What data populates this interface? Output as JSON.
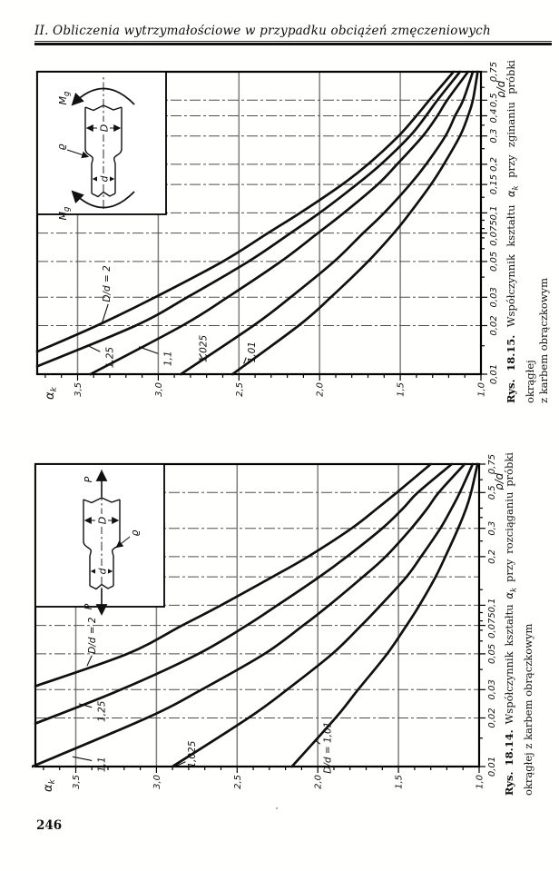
{
  "header": {
    "text": "II. Obliczenia wytrzymałościowe w przypadku obciążeń zmęczeniowych"
  },
  "page_number": "246",
  "figures": [
    {
      "name": "rys-18-15",
      "caption": {
        "prefix": "Rys. 18.15.",
        "mid": " Współczynnik kształtu ",
        "alpha": "α",
        "sub": "k",
        "rest": " przy zginaniu próbki okrągłej",
        "line2": "z karbem obrączkowym"
      }
    },
    {
      "name": "rys-18-14",
      "caption": {
        "prefix": "Rys. 18.14.",
        "mid": " Współczynnik kształtu ",
        "alpha": "α",
        "sub": "k",
        "rest": " przy rozciąganiu próbki",
        "line2": "okrągłej z karbem obrączkowym"
      }
    }
  ],
  "chart_data": [
    {
      "type": "line",
      "figure": "Rys. 18.15 — zginanie (bending)",
      "x_scale": "log",
      "xlim": [
        0.01,
        0.75
      ],
      "ylim": [
        1.0,
        3.75
      ],
      "xlabel": "ϱ/d",
      "ylabel_main": "α",
      "ylabel_sub": "k",
      "x_tick_values": [
        0.01,
        0.02,
        0.03,
        0.05,
        0.075,
        0.1,
        0.15,
        0.2,
        0.3,
        0.4,
        0.5,
        0.75
      ],
      "x_tick_labels": [
        "0,01",
        "0,02",
        "0,03",
        "0,05",
        "0,075",
        "0,1",
        "0,15",
        "0,2",
        "0,3",
        "0,4",
        "0,5",
        "0,75"
      ],
      "x_gridlines": [
        0.02,
        0.03,
        0.05,
        0.075,
        0.1,
        0.15,
        0.2,
        0.3,
        0.4,
        0.5
      ],
      "x_minor_ticks": [
        0.015,
        0.04,
        0.06,
        0.07,
        0.08,
        0.09,
        0.125,
        0.25,
        0.35,
        0.6
      ],
      "y_tick_values": [
        1.0,
        1.5,
        2.0,
        2.5,
        3.0,
        3.5
      ],
      "y_tick_labels": [
        "1,0",
        "1,5",
        "2,0",
        "2,5",
        "3,0",
        "3,5"
      ],
      "y_gridlines": [
        1.5,
        2.0,
        2.5,
        3.0,
        3.5
      ],
      "grid": true,
      "legend": "labels on curves",
      "series": [
        {
          "name": "D/d = 2",
          "label": "D/d = 2",
          "label_pos": [
            0.028,
            3.3
          ],
          "label_anchor": "start",
          "leader": [
            0.0205,
            3.35,
            0.0272,
            3.31
          ],
          "points": [
            [
              0.0138,
              3.75
            ],
            [
              0.02,
              3.38
            ],
            [
              0.03,
              3.02
            ],
            [
              0.05,
              2.6
            ],
            [
              0.075,
              2.32
            ],
            [
              0.1,
              2.12
            ],
            [
              0.15,
              1.86
            ],
            [
              0.2,
              1.7
            ],
            [
              0.3,
              1.51
            ],
            [
              0.4,
              1.4
            ],
            [
              0.5,
              1.32
            ],
            [
              0.75,
              1.17
            ]
          ]
        },
        {
          "name": "D/d = 1,25",
          "label": "1,25",
          "label_pos": [
            0.0127,
            3.28
          ],
          "label_anchor": "middle",
          "leader": [
            0.0138,
            3.36,
            0.0151,
            3.44
          ],
          "points": [
            [
              0.0112,
              3.75
            ],
            [
              0.02,
              3.14
            ],
            [
              0.03,
              2.82
            ],
            [
              0.05,
              2.44
            ],
            [
              0.075,
              2.18
            ],
            [
              0.1,
              2.0
            ],
            [
              0.15,
              1.77
            ],
            [
              0.2,
              1.62
            ],
            [
              0.3,
              1.44
            ],
            [
              0.4,
              1.34
            ],
            [
              0.5,
              1.27
            ],
            [
              0.75,
              1.13
            ]
          ]
        },
        {
          "name": "D/d = 1,1",
          "label": "1,1",
          "label_pos": [
            0.0125,
            2.92
          ],
          "label_anchor": "middle",
          "leader": [
            0.0134,
            3.0,
            0.0148,
            3.12
          ],
          "points": [
            [
              0.01,
              3.42
            ],
            [
              0.02,
              2.85
            ],
            [
              0.03,
              2.57
            ],
            [
              0.05,
              2.24
            ],
            [
              0.075,
              2.01
            ],
            [
              0.1,
              1.85
            ],
            [
              0.15,
              1.64
            ],
            [
              0.2,
              1.52
            ],
            [
              0.3,
              1.36
            ],
            [
              0.4,
              1.27
            ],
            [
              0.5,
              1.21
            ],
            [
              0.75,
              1.08
            ]
          ]
        },
        {
          "name": "D/d = 1,025",
          "label": "1,025",
          "label_pos": [
            0.0144,
            2.7
          ],
          "label_anchor": "middle",
          "leader": [
            0.0134,
            2.745,
            0.0122,
            2.72
          ],
          "points": [
            [
              0.01,
              2.86
            ],
            [
              0.02,
              2.41
            ],
            [
              0.03,
              2.18
            ],
            [
              0.05,
              1.91
            ],
            [
              0.075,
              1.73
            ],
            [
              0.1,
              1.6
            ],
            [
              0.15,
              1.44
            ],
            [
              0.2,
              1.34
            ],
            [
              0.3,
              1.22
            ],
            [
              0.4,
              1.16
            ],
            [
              0.5,
              1.11
            ],
            [
              0.75,
              1.05
            ]
          ]
        },
        {
          "name": "D/d = 1,01",
          "label": "1,01",
          "label_pos": [
            0.0137,
            2.4
          ],
          "label_anchor": "middle",
          "leader": [
            0.0127,
            2.455,
            0.0116,
            2.47
          ],
          "points": [
            [
              0.01,
              2.54
            ],
            [
              0.02,
              2.13
            ],
            [
              0.03,
              1.93
            ],
            [
              0.05,
              1.7
            ],
            [
              0.075,
              1.54
            ],
            [
              0.1,
              1.44
            ],
            [
              0.15,
              1.31
            ],
            [
              0.2,
              1.23
            ],
            [
              0.3,
              1.13
            ],
            [
              0.4,
              1.08
            ],
            [
              0.5,
              1.05
            ],
            [
              0.75,
              1.02
            ]
          ]
        }
      ],
      "inset": {
        "load_type": "bending",
        "load_label": "M",
        "load_sub": "g",
        "dim_outer": "D",
        "dim_inner": "d",
        "radius_label": "ϱ",
        "radius_side": "top"
      }
    },
    {
      "type": "line",
      "figure": "Rys. 18.14 — rozciąganie (tension)",
      "x_scale": "log",
      "xlim": [
        0.01,
        0.75
      ],
      "ylim": [
        1.0,
        3.75
      ],
      "xlabel": "ϱ/d",
      "ylabel_main": "α",
      "ylabel_sub": "k",
      "x_tick_values": [
        0.01,
        0.02,
        0.03,
        0.05,
        0.075,
        0.1,
        0.2,
        0.3,
        0.5,
        0.75
      ],
      "x_tick_labels": [
        "0,01",
        "0,02",
        "0,03",
        "0,05",
        "0,075",
        "0,1",
        "0,2",
        "0,3",
        "0,5",
        "0,75"
      ],
      "x_gridlines": [
        0.02,
        0.03,
        0.05,
        0.075,
        0.1,
        0.15,
        0.2,
        0.3,
        0.5
      ],
      "x_minor_ticks": [
        0.015,
        0.04,
        0.06,
        0.07,
        0.08,
        0.09,
        0.125,
        0.25,
        0.35,
        0.4,
        0.6
      ],
      "y_tick_values": [
        1.0,
        1.5,
        2.0,
        2.5,
        3.0,
        3.5
      ],
      "y_tick_labels": [
        "1,0",
        "1,5",
        "2,0",
        "2,5",
        "3,0",
        "3,5"
      ],
      "y_gridlines": [
        1.5,
        2.0,
        2.5,
        3.0,
        3.5
      ],
      "grid": true,
      "legend": "labels on curves",
      "series": [
        {
          "name": "D/d = 2",
          "label": "D/d = 2",
          "label_pos": [
            0.05,
            3.38
          ],
          "label_anchor": "start",
          "leader": [
            0.042,
            3.43,
            0.0488,
            3.4
          ],
          "points": [
            [
              0.0315,
              3.75
            ],
            [
              0.05,
              3.18
            ],
            [
              0.075,
              2.84
            ],
            [
              0.1,
              2.6
            ],
            [
              0.15,
              2.28
            ],
            [
              0.2,
              2.06
            ],
            [
              0.3,
              1.79
            ],
            [
              0.4,
              1.63
            ],
            [
              0.5,
              1.51
            ],
            [
              0.75,
              1.3
            ]
          ]
        },
        {
          "name": "D/d = 1,25",
          "label": "1,25",
          "label_pos": [
            0.022,
            3.32
          ],
          "label_anchor": "middle",
          "leader": [
            0.0233,
            3.4,
            0.0245,
            3.48
          ],
          "points": [
            [
              0.0185,
              3.75
            ],
            [
              0.03,
              3.22
            ],
            [
              0.05,
              2.74
            ],
            [
              0.075,
              2.44
            ],
            [
              0.1,
              2.25
            ],
            [
              0.15,
              1.99
            ],
            [
              0.2,
              1.82
            ],
            [
              0.3,
              1.6
            ],
            [
              0.4,
              1.47
            ],
            [
              0.5,
              1.38
            ],
            [
              0.75,
              1.17
            ]
          ]
        },
        {
          "name": "D/d = 1,1",
          "label": "1,1",
          "label_pos": [
            0.0103,
            3.32
          ],
          "label_anchor": "middle",
          "leader": [
            0.0109,
            3.4,
            0.0115,
            3.52
          ],
          "points": [
            [
              0.01,
              3.77
            ],
            [
              0.02,
              3.06
            ],
            [
              0.03,
              2.72
            ],
            [
              0.05,
              2.33
            ],
            [
              0.075,
              2.09
            ],
            [
              0.1,
              1.93
            ],
            [
              0.15,
              1.72
            ],
            [
              0.2,
              1.58
            ],
            [
              0.3,
              1.42
            ],
            [
              0.4,
              1.32
            ],
            [
              0.5,
              1.25
            ],
            [
              0.75,
              1.09
            ]
          ]
        },
        {
          "name": "D/d = 1,025",
          "label": "1,025",
          "label_pos": [
            0.0119,
            2.76
          ],
          "label_anchor": "middle",
          "leader": [
            0.0107,
            2.82,
            0.0101,
            2.875
          ],
          "points": [
            [
              0.01,
              2.9
            ],
            [
              0.02,
              2.43
            ],
            [
              0.03,
              2.19
            ],
            [
              0.05,
              1.91
            ],
            [
              0.075,
              1.73
            ],
            [
              0.1,
              1.61
            ],
            [
              0.15,
              1.45
            ],
            [
              0.2,
              1.36
            ],
            [
              0.3,
              1.24
            ],
            [
              0.4,
              1.17
            ],
            [
              0.5,
              1.12
            ],
            [
              0.75,
              1.04
            ]
          ]
        },
        {
          "name": "D/d = 1,01",
          "label": "D/d = 1,01",
          "label_pos": [
            0.0131,
            1.92
          ],
          "label_anchor": "middle",
          "leader": [
            0.0138,
            1.985,
            0.0144,
            2.01
          ],
          "points": [
            [
              0.01,
              2.16
            ],
            [
              0.02,
              1.89
            ],
            [
              0.03,
              1.75
            ],
            [
              0.05,
              1.57
            ],
            [
              0.075,
              1.45
            ],
            [
              0.1,
              1.37
            ],
            [
              0.15,
              1.27
            ],
            [
              0.2,
              1.21
            ],
            [
              0.3,
              1.13
            ],
            [
              0.4,
              1.08
            ],
            [
              0.5,
              1.05
            ],
            [
              0.75,
              1.01
            ]
          ]
        }
      ],
      "inset": {
        "load_type": "tension",
        "load_label": "P",
        "load_sub": "",
        "dim_outer": "D",
        "dim_inner": "d",
        "radius_label": "ϱ",
        "radius_side": "bottom"
      }
    }
  ]
}
